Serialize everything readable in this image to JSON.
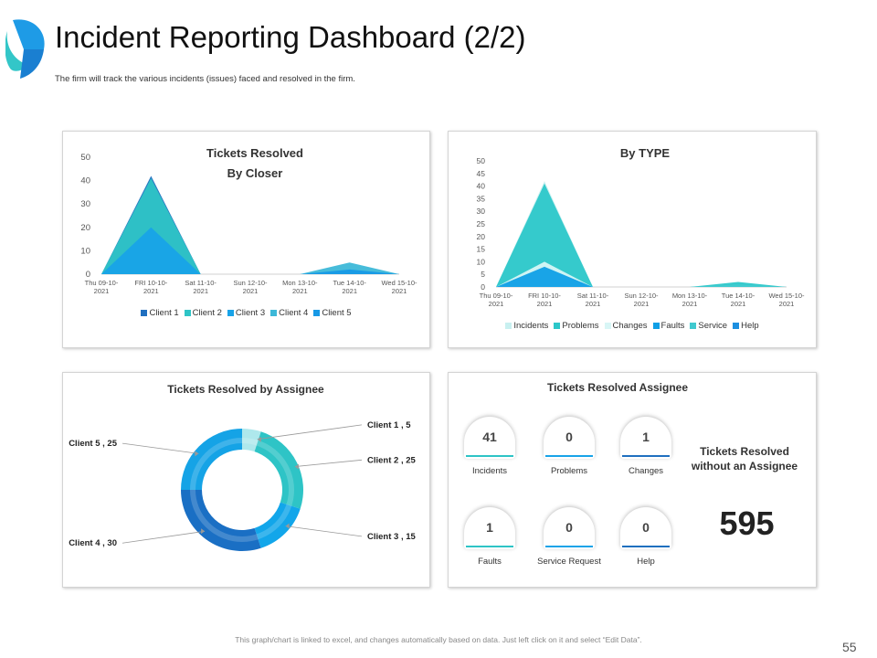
{
  "header": {
    "title": "Incident Reporting Dashboard (2/2)",
    "subtitle": "The firm will track the various incidents (issues) faced and resolved in the firm."
  },
  "footer": {
    "note": "This graph/chart is linked to excel, and changes automatically based on data. Just left click on it and select “Edit Data”.",
    "page_number": "55"
  },
  "colors": {
    "client1": "#1f6fbf",
    "client2": "#2ec4c6",
    "client3": "#18a3e8",
    "client4": "#3db8d8",
    "client5": "#1799e6",
    "incidents": "#c8f0f0",
    "problems": "#2cc7c9",
    "changes": "#d8f6f6",
    "faults": "#0f9fe6",
    "service": "#40c9cf",
    "help": "#1c8fe0",
    "donut_client1": "#aee8ec",
    "donut_client2": "#2ec4c6",
    "donut_client3": "#12a6ea",
    "donut_client4": "#1a6fc4",
    "donut_client5": "#15a3e6"
  },
  "chart_data": [
    {
      "type": "area",
      "title": "Tickets Resolved",
      "subtitle": "By Closer",
      "categories": [
        "Thu 09-10-2021",
        "FRI 10-10-2021",
        "Sat 11-10-2021",
        "Sun 12-10-2021",
        "Mon 13-10-2021",
        "Tue 14-10-2021",
        "Wed 15-10-2021"
      ],
      "ylim": [
        0,
        50
      ],
      "yticks": [
        0,
        10,
        20,
        30,
        40,
        50
      ],
      "legend_position": "bottom",
      "series": [
        {
          "name": "Client 1",
          "color_key": "client1",
          "values": [
            0,
            42,
            0,
            0,
            0,
            0,
            0
          ]
        },
        {
          "name": "Client 2",
          "color_key": "client2",
          "values": [
            0,
            41,
            0,
            0,
            0,
            0,
            0
          ]
        },
        {
          "name": "Client 3",
          "color_key": "client3",
          "values": [
            0,
            20,
            0,
            0,
            0,
            0,
            0
          ]
        },
        {
          "name": "Client 4",
          "color_key": "client4",
          "values": [
            0,
            0,
            0,
            0,
            0,
            5,
            0
          ]
        },
        {
          "name": "Client 5",
          "color_key": "client5",
          "values": [
            0,
            0,
            0,
            0,
            0,
            2,
            0
          ]
        }
      ]
    },
    {
      "type": "area",
      "title": "By TYPE",
      "categories": [
        "Thu 09-10-2021",
        "FRI 10-10-2021",
        "Sat 11-10-2021",
        "Sun 12-10-2021",
        "Mon 13-10-2021",
        "Tue 14-10-2021",
        "Wed 15-10-2021"
      ],
      "ylim": [
        0,
        50
      ],
      "yticks": [
        0,
        5,
        10,
        15,
        20,
        25,
        30,
        35,
        40,
        45,
        50
      ],
      "legend_position": "bottom",
      "series": [
        {
          "name": "Incidents",
          "color_key": "incidents",
          "values": [
            0,
            42,
            0,
            0,
            0,
            0,
            0
          ]
        },
        {
          "name": "Problems",
          "color_key": "problems",
          "values": [
            0,
            41,
            0,
            0,
            0,
            2,
            0
          ]
        },
        {
          "name": "Changes",
          "color_key": "changes",
          "values": [
            0,
            10,
            0,
            0,
            0,
            0,
            0
          ]
        },
        {
          "name": "Faults",
          "color_key": "faults",
          "values": [
            0,
            8,
            0,
            0,
            0,
            0,
            0
          ]
        },
        {
          "name": "Service",
          "color_key": "service",
          "values": [
            0,
            0,
            0,
            0,
            0,
            1,
            0
          ]
        },
        {
          "name": "Help",
          "color_key": "help",
          "values": [
            0,
            0,
            0,
            0,
            0,
            0,
            0
          ]
        }
      ]
    },
    {
      "type": "pie",
      "title": "Tickets Resolved by Assignee",
      "slices": [
        {
          "name": "Client 1",
          "value": 5,
          "label": "Client 1 , 5",
          "color_key": "donut_client1"
        },
        {
          "name": "Client 2",
          "value": 25,
          "label": "Client 2 , 25",
          "color_key": "donut_client2"
        },
        {
          "name": "Client 3",
          "value": 15,
          "label": "Client 3 , 15",
          "color_key": "donut_client3"
        },
        {
          "name": "Client 4",
          "value": 30,
          "label": "Client 4 , 30",
          "color_key": "donut_client4"
        },
        {
          "name": "Client 5",
          "value": 25,
          "label": "Client 5 , 25",
          "color_key": "donut_client5"
        }
      ]
    }
  ],
  "assignee_panel": {
    "title": "Tickets Resolved Assignee",
    "stats": [
      {
        "label": "Incidents",
        "value": "41",
        "bar_color": "#2ec4c6"
      },
      {
        "label": "Problems",
        "value": "0",
        "bar_color": "#18a3e8"
      },
      {
        "label": "Changes",
        "value": "1",
        "bar_color": "#1f6fbf"
      },
      {
        "label": "Faults",
        "value": "1",
        "bar_color": "#2ec4c6"
      },
      {
        "label": "Service Request",
        "value": "0",
        "bar_color": "#18a3e8"
      },
      {
        "label": "Help",
        "value": "0",
        "bar_color": "#1f6fbf"
      }
    ],
    "unassigned_title": "Tickets Resolved without an Assignee",
    "unassigned_value": "595"
  }
}
